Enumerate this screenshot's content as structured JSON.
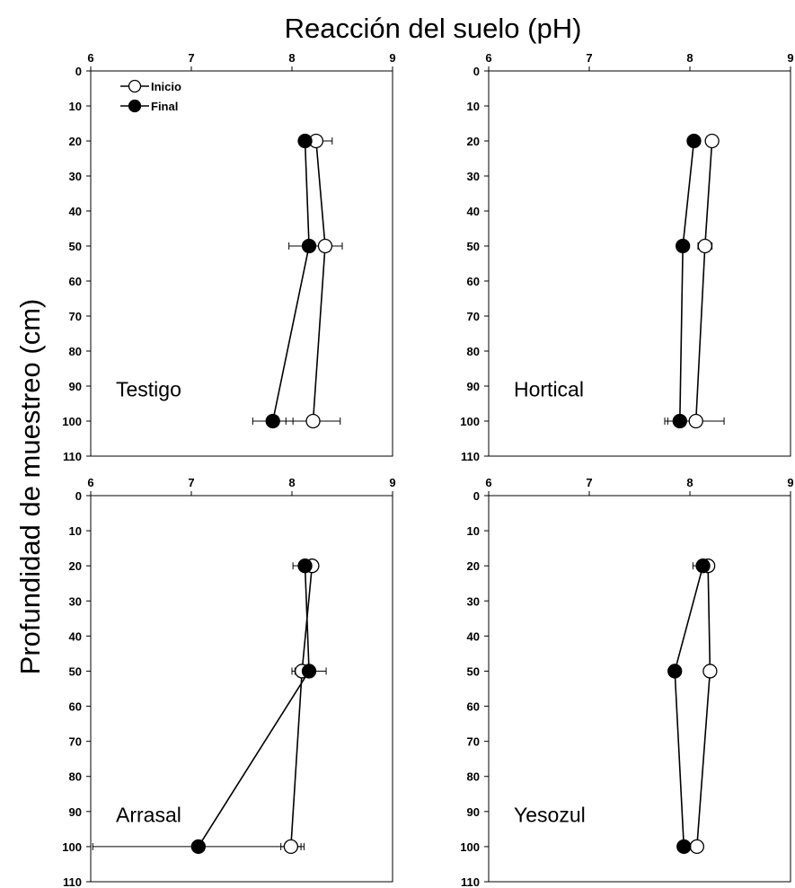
{
  "chart_data": {
    "type": "scatter",
    "title": "Reacción del suelo (pH)",
    "ylabel": "Profundidad de muestreo (cm)",
    "xlim": [
      6,
      9
    ],
    "ylim": [
      0,
      110
    ],
    "x_ticks": [
      "6",
      "7",
      "8",
      "9"
    ],
    "y_ticks": [
      "0",
      "10",
      "20",
      "30",
      "40",
      "50",
      "60",
      "70",
      "80",
      "90",
      "100",
      "110"
    ],
    "y_inverted": true,
    "grid": false,
    "legend": {
      "placement": "top-left",
      "entries": [
        "Inicio",
        "Final"
      ]
    },
    "panels": [
      {
        "label": "Testigo",
        "series": [
          {
            "name": "Inicio",
            "marker": "open-circle",
            "points": [
              {
                "x": 8.24,
                "y": 20,
                "err": 0.16
              },
              {
                "x": 8.33,
                "y": 50,
                "err": 0.17
              },
              {
                "x": 8.21,
                "y": 100,
                "err": 0.27
              }
            ]
          },
          {
            "name": "Final",
            "marker": "filled-circle",
            "points": [
              {
                "x": 8.13,
                "y": 20,
                "err": 0.0
              },
              {
                "x": 8.17,
                "y": 50,
                "err": 0.2
              },
              {
                "x": 7.81,
                "y": 100,
                "err": 0.2
              }
            ]
          }
        ]
      },
      {
        "label": "Hortical",
        "series": [
          {
            "name": "Inicio",
            "marker": "open-circle",
            "points": [
              {
                "x": 8.22,
                "y": 20,
                "err": 0.0
              },
              {
                "x": 8.15,
                "y": 50,
                "err": 0.07
              },
              {
                "x": 8.06,
                "y": 100,
                "err": 0.28
              }
            ]
          },
          {
            "name": "Final",
            "marker": "filled-circle",
            "points": [
              {
                "x": 8.04,
                "y": 20,
                "err": 0.06
              },
              {
                "x": 7.93,
                "y": 50,
                "err": 0.0
              },
              {
                "x": 7.9,
                "y": 100,
                "err": 0.15
              }
            ]
          }
        ]
      },
      {
        "label": "Arrasal",
        "series": [
          {
            "name": "Inicio",
            "marker": "open-circle",
            "points": [
              {
                "x": 8.2,
                "y": 20,
                "err": 0.0
              },
              {
                "x": 8.1,
                "y": 50,
                "err": 0.07
              },
              {
                "x": 7.99,
                "y": 100,
                "err": 0.1
              }
            ]
          },
          {
            "name": "Final",
            "marker": "filled-circle",
            "points": [
              {
                "x": 8.13,
                "y": 20,
                "err": 0.12
              },
              {
                "x": 8.17,
                "y": 50,
                "err": 0.17
              },
              {
                "x": 7.07,
                "y": 100,
                "err": 1.05
              }
            ]
          }
        ]
      },
      {
        "label": "Yesozul",
        "series": [
          {
            "name": "Inicio",
            "marker": "open-circle",
            "points": [
              {
                "x": 8.18,
                "y": 20,
                "err": 0.06
              },
              {
                "x": 8.2,
                "y": 50,
                "err": 0.0
              },
              {
                "x": 8.07,
                "y": 100,
                "err": 0.0
              }
            ]
          },
          {
            "name": "Final",
            "marker": "filled-circle",
            "points": [
              {
                "x": 8.13,
                "y": 20,
                "err": 0.1
              },
              {
                "x": 7.85,
                "y": 50,
                "err": 0.05
              },
              {
                "x": 7.94,
                "y": 100,
                "err": 0.04
              }
            ]
          }
        ]
      }
    ]
  }
}
